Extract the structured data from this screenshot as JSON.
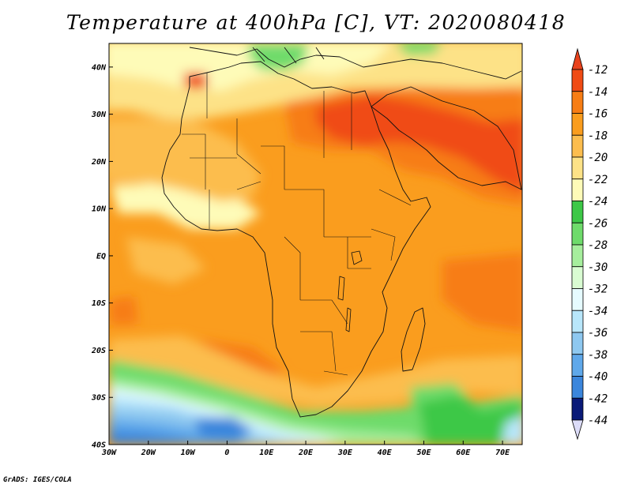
{
  "title": "Temperature at 400hPa [C], VT: 2020080418",
  "credit": "GrADS: IGES/COLA",
  "map": {
    "lon_range": [
      -30,
      75
    ],
    "lat_range": [
      -40,
      45
    ],
    "lon_ticks": [
      {
        "value": -30,
        "label": "30W"
      },
      {
        "value": -20,
        "label": "20W"
      },
      {
        "value": -10,
        "label": "10W"
      },
      {
        "value": 0,
        "label": "0"
      },
      {
        "value": 10,
        "label": "10E"
      },
      {
        "value": 20,
        "label": "20E"
      },
      {
        "value": 30,
        "label": "30E"
      },
      {
        "value": 40,
        "label": "40E"
      },
      {
        "value": 50,
        "label": "50E"
      },
      {
        "value": 60,
        "label": "60E"
      },
      {
        "value": 70,
        "label": "70E"
      }
    ],
    "lat_ticks": [
      {
        "value": 40,
        "label": "40N"
      },
      {
        "value": 30,
        "label": "30N"
      },
      {
        "value": 20,
        "label": "20N"
      },
      {
        "value": 10,
        "label": "10N"
      },
      {
        "value": 0,
        "label": "EQ"
      },
      {
        "value": -10,
        "label": "10S"
      },
      {
        "value": -20,
        "label": "20S"
      },
      {
        "value": -30,
        "label": "30S"
      },
      {
        "value": -40,
        "label": "40S"
      }
    ]
  },
  "colorbar": {
    "levels": [
      {
        "label": "-12",
        "color": "#f04b14"
      },
      {
        "label": "-14",
        "color": "#f77d14"
      },
      {
        "label": "-16",
        "color": "#fa9d1e"
      },
      {
        "label": "-18",
        "color": "#fcbd4e"
      },
      {
        "label": "-20",
        "color": "#fde287"
      },
      {
        "label": "-22",
        "color": "#fefbb8"
      },
      {
        "label": "-24",
        "color": "#3dc847"
      },
      {
        "label": "-26",
        "color": "#6edb6b"
      },
      {
        "label": "-28",
        "color": "#a6ee9d"
      },
      {
        "label": "-30",
        "color": "#d9fcd2"
      },
      {
        "label": "-32",
        "color": "#e6fbff"
      },
      {
        "label": "-34",
        "color": "#b8e6fa"
      },
      {
        "label": "-36",
        "color": "#8ec8f0"
      },
      {
        "label": "-38",
        "color": "#5fa8ea"
      },
      {
        "label": "-40",
        "color": "#3b86dc"
      },
      {
        "label": "-42",
        "color": "#2164c8"
      },
      {
        "label": "-44",
        "color": "#0f48ac"
      }
    ],
    "over_color": "#e8421c",
    "under_color": "#dcdcf8",
    "bottom_box_color": "#0a1a78"
  },
  "field_colors": {
    "background": "#fa9d1e",
    "hot": "#f04b14",
    "warm": "#f77d14",
    "mild": "#fcbd4e",
    "cool": "#fde287",
    "pale": "#fefbb8",
    "green": "#3dc847",
    "lightgreen": "#6edb6b",
    "palegreen": "#a6ee9d",
    "ice": "#e6fbff",
    "sky": "#b8e6fa",
    "blue": "#8ec8f0",
    "midblue": "#5fa8ea",
    "deepblue": "#3b86dc",
    "navy": "#2164c8"
  }
}
